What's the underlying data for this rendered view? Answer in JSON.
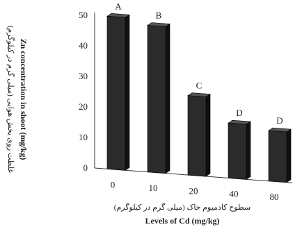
{
  "chart_data": {
    "type": "bar",
    "title": "",
    "categories": [
      "0",
      "10",
      "20",
      "40",
      "80"
    ],
    "values": [
      50,
      48,
      26,
      18,
      16.5
    ],
    "significance_letters": [
      "A",
      "B",
      "C",
      "D",
      "D"
    ],
    "ylim": [
      0,
      50
    ],
    "y_ticks": [
      "0",
      "10",
      "20",
      "30",
      "40",
      "50"
    ],
    "xlabel": "Levels of Cd (mg/kg)",
    "xlabel_fa": "سطوح کادمیوم خاک (میلی گرم در کیلوگرم)",
    "ylabel": "Zn concentration in shoot (mg/kg)",
    "ylabel_fa": "غلظت روی بخش هوایی (میلی گرم در کیلوگرم)",
    "grid": false,
    "legend": "none",
    "bar_color": "#2b2b2b",
    "bar_side_color": "#111111",
    "bar_top_color": "#555555"
  }
}
